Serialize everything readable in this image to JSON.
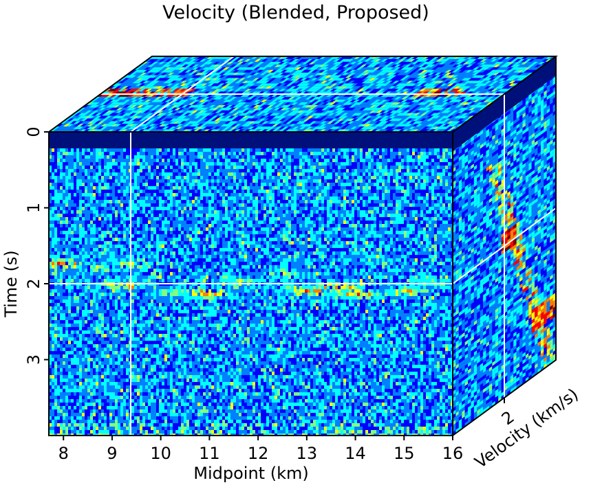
{
  "chart_data": {
    "type": "heatmap",
    "title": "Velocity (Blended, Proposed)",
    "axes": {
      "midpoint": {
        "label": "Midpoint (km)",
        "ticks": [
          "8",
          "9",
          "10",
          "11",
          "12",
          "13",
          "14",
          "15",
          "16"
        ],
        "range": [
          7.7,
          16
        ]
      },
      "time": {
        "label": "Time (s)",
        "ticks": [
          "0",
          "1",
          "2",
          "3"
        ],
        "range": [
          0,
          4
        ],
        "inverted": true
      },
      "velocity": {
        "label": "Velocity (km/s)",
        "ticks": [
          "2"
        ]
      }
    },
    "slices": {
      "midpoint_km": 9.35,
      "time_s": 2.0,
      "velocity_km_s": 2.0
    },
    "colormap": [
      "#00007f",
      "#0000ff",
      "#0080ff",
      "#00ffff",
      "#80ff80",
      "#ffff00",
      "#ff8000",
      "#ff0000",
      "#7f0000"
    ],
    "events": [
      {
        "midpoint": 8.0,
        "time": 1.72,
        "strength": 0.85
      },
      {
        "midpoint": 8.7,
        "time": 1.78,
        "strength": 0.6
      },
      {
        "midpoint": 9.4,
        "time": 1.72,
        "strength": 0.7
      },
      {
        "midpoint": 9.2,
        "time": 2.0,
        "strength": 0.9
      },
      {
        "midpoint": 10.2,
        "time": 2.1,
        "strength": 0.6
      },
      {
        "midpoint": 10.9,
        "time": 2.1,
        "strength": 0.95
      },
      {
        "midpoint": 11.6,
        "time": 1.95,
        "strength": 0.65
      },
      {
        "midpoint": 12.5,
        "time": 1.85,
        "strength": 0.7
      },
      {
        "midpoint": 13.0,
        "time": 2.08,
        "strength": 0.95
      },
      {
        "midpoint": 13.6,
        "time": 2.02,
        "strength": 0.9
      },
      {
        "midpoint": 14.0,
        "time": 2.12,
        "strength": 0.85
      },
      {
        "midpoint": 15.0,
        "time": 2.08,
        "strength": 0.8
      },
      {
        "midpoint": 15.6,
        "time": 1.95,
        "strength": 0.6
      }
    ]
  }
}
